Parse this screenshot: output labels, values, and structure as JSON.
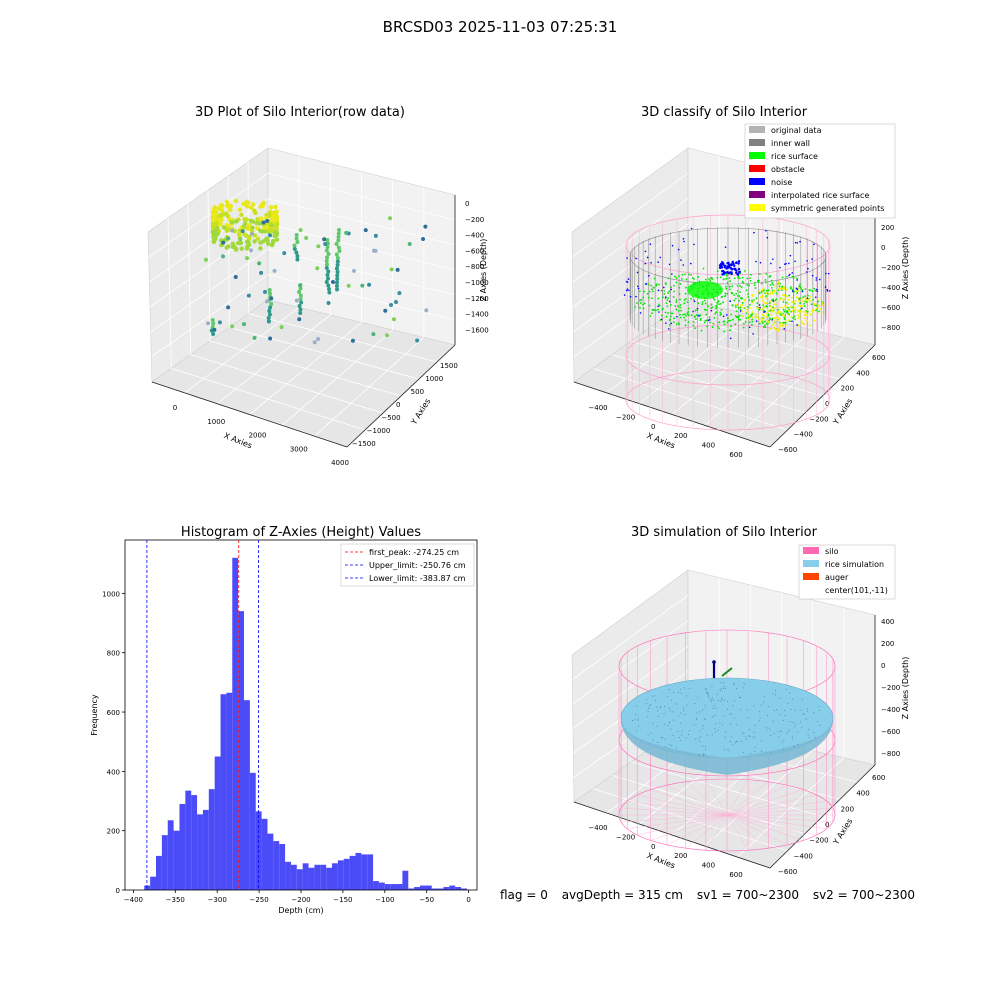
{
  "suptitle": "BRCSD03 2025-11-03 07:25:31",
  "panels": {
    "raw": {
      "title": "3D Plot of Silo Interior(row data)",
      "xlabel": "X Axies",
      "ylabel": "Y Axies",
      "zlabel": "Z Axies (Depth)",
      "xticks": [
        "0",
        "1000",
        "2000",
        "3000",
        "4000"
      ],
      "yticks": [
        "1500",
        "1000",
        "500",
        "0",
        "−500",
        "−1000",
        "−1500"
      ],
      "zticks": [
        "0",
        "−200",
        "−400",
        "−600",
        "−800",
        "−1000",
        "−1200",
        "−1400",
        "−1600"
      ]
    },
    "classify": {
      "title": "3D classify of Silo Interior",
      "xlabel": "X Axies",
      "ylabel": "Y Axies",
      "zlabel": "Z Axies (Depth)",
      "xticks": [
        "−400",
        "−200",
        "0",
        "200",
        "400",
        "600"
      ],
      "yticks": [
        "600",
        "400",
        "200",
        "0",
        "−200",
        "−400",
        "−600"
      ],
      "zticks": [
        "200",
        "0",
        "−200",
        "−400",
        "−600",
        "−800"
      ],
      "legend": [
        {
          "label": "original data",
          "color": "#b3b3b3"
        },
        {
          "label": "inner wall",
          "color": "#808080"
        },
        {
          "label": "rice surface",
          "color": "#00ff00"
        },
        {
          "label": "obstacle",
          "color": "#ff0000"
        },
        {
          "label": "noise",
          "color": "#0000ff"
        },
        {
          "label": "interpolated rice surface",
          "color": "#800080"
        },
        {
          "label": "symmetric generated points",
          "color": "#ffff00"
        }
      ]
    },
    "simulation": {
      "title": "3D simulation of Silo Interior",
      "xlabel": "X Axies",
      "ylabel": "Y Axies",
      "zlabel": "Z Axies (Depth)",
      "xticks": [
        "−400",
        "−200",
        "0",
        "200",
        "400",
        "600"
      ],
      "yticks": [
        "600",
        "400",
        "200",
        "0",
        "−200",
        "−400",
        "−600"
      ],
      "zticks": [
        "400",
        "200",
        "0",
        "−200",
        "−400",
        "−600",
        "−800"
      ],
      "legend": [
        {
          "label": "silo",
          "color": "#ff69b4"
        },
        {
          "label": "rice simulation",
          "color": "#87ceeb"
        },
        {
          "label": "auger",
          "color": "#ff4500"
        },
        {
          "label": "center(101,-11)",
          "color": ""
        }
      ]
    }
  },
  "footer": {
    "flag": "flag = 0",
    "avg": "avgDepth = 315 cm",
    "sv1": "sv1 = 700~2300",
    "sv2": "sv2 = 700~2300"
  },
  "chart_data": [
    {
      "type": "bar",
      "title": "Histogram of Z-Axies (Height) Values",
      "xlabel": "Depth (cm)",
      "ylabel": "Frequency",
      "xlim": [
        -410,
        10
      ],
      "ylim": [
        0,
        1180
      ],
      "xticks": [
        -400,
        -350,
        -300,
        -250,
        -200,
        -150,
        -100,
        -50,
        0
      ],
      "yticks": [
        0,
        200,
        400,
        600,
        800,
        1000
      ],
      "bar_color": "#4b4bf7",
      "bin_edges": [
        -387,
        -380,
        -373,
        -366,
        -359,
        -352,
        -345,
        -338,
        -331,
        -324,
        -317,
        -310,
        -303,
        -296,
        -289,
        -282,
        -275,
        -268,
        -261,
        -254,
        -247,
        -240,
        -233,
        -226,
        -219,
        -212,
        -205,
        -198,
        -191,
        -184,
        -177,
        -170,
        -163,
        -156,
        -149,
        -142,
        -135,
        -128,
        -121,
        -114,
        -107,
        -100,
        -93,
        -86,
        -79,
        -72,
        -65,
        -58,
        -51,
        -44,
        -37,
        -30,
        -23,
        -16,
        -9,
        -2
      ],
      "values": [
        15,
        45,
        115,
        185,
        235,
        200,
        290,
        335,
        320,
        255,
        270,
        340,
        450,
        660,
        665,
        1120,
        940,
        640,
        395,
        265,
        240,
        190,
        165,
        155,
        95,
        85,
        70,
        90,
        75,
        85,
        85,
        75,
        90,
        100,
        105,
        115,
        125,
        120,
        120,
        30,
        25,
        20,
        20,
        20,
        65,
        5,
        10,
        15,
        15,
        5,
        5,
        10,
        15,
        10,
        5
      ],
      "lines": [
        {
          "label": "first_peak: -274.25 cm",
          "x": -274.25,
          "color": "#ff0000"
        },
        {
          "label": "Upper_limit: -250.76 cm",
          "x": -250.76,
          "color": "#0000ff"
        },
        {
          "label": "Lower_limit: -383.87 cm",
          "x": -383.87,
          "color": "#0000ff"
        }
      ]
    }
  ]
}
